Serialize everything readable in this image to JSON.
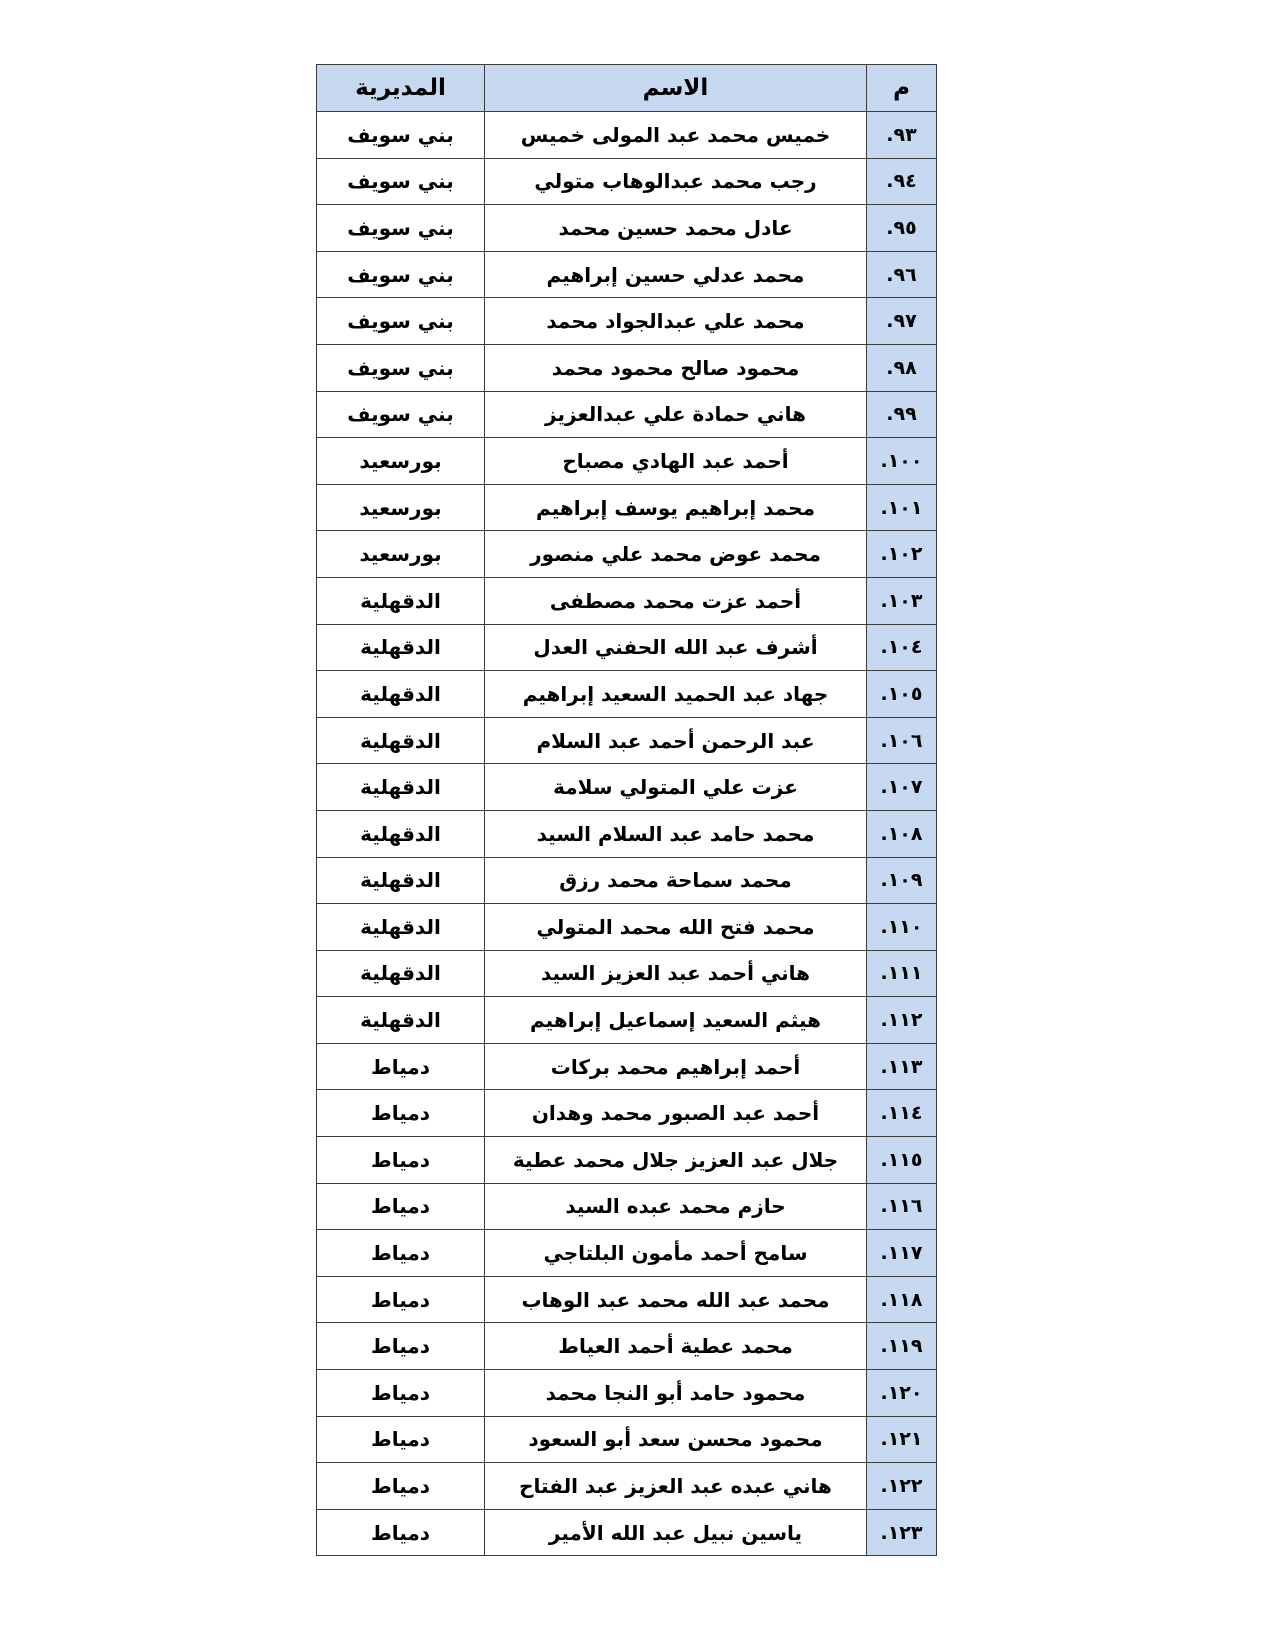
{
  "page": {
    "background": "#ffffff"
  },
  "table": {
    "colors": {
      "header_bg": "#c6d9f1",
      "num_col_bg": "#c6d9f1",
      "border": "#3b3b3b",
      "text": "#000000"
    },
    "header": {
      "num": "م",
      "name": "الاسم",
      "directorate": "المديرية"
    },
    "rows": [
      {
        "num": "٩٣.",
        "name": "خميس محمد عبد المولى خميس",
        "directorate": "بني سويف"
      },
      {
        "num": "٩٤.",
        "name": "رجب محمد عبدالوهاب متولي",
        "directorate": "بني سويف"
      },
      {
        "num": "٩٥.",
        "name": "عادل محمد حسين محمد",
        "directorate": "بني سويف"
      },
      {
        "num": "٩٦.",
        "name": "محمد عدلي حسين إبراهيم",
        "directorate": "بني سويف"
      },
      {
        "num": "٩٧.",
        "name": "محمد علي عبدالجواد محمد",
        "directorate": "بني سويف"
      },
      {
        "num": "٩٨.",
        "name": "محمود صالح محمود محمد",
        "directorate": "بني سويف"
      },
      {
        "num": "٩٩.",
        "name": "هاني حمادة علي عبدالعزيز",
        "directorate": "بني سويف"
      },
      {
        "num": "١٠٠.",
        "name": "أحمد عبد الهادي مصباح",
        "directorate": "بورسعيد"
      },
      {
        "num": "١٠١.",
        "name": "محمد إبراهيم يوسف إبراهيم",
        "directorate": "بورسعيد"
      },
      {
        "num": "١٠٢.",
        "name": "محمد عوض محمد علي منصور",
        "directorate": "بورسعيد"
      },
      {
        "num": "١٠٣.",
        "name": "أحمد عزت محمد مصطفى",
        "directorate": "الدقهلية"
      },
      {
        "num": "١٠٤.",
        "name": "أشرف عبد الله الحفني العدل",
        "directorate": "الدقهلية"
      },
      {
        "num": "١٠٥.",
        "name": "جهاد عبد الحميد السعيد إبراهيم",
        "directorate": "الدقهلية"
      },
      {
        "num": "١٠٦.",
        "name": "عبد الرحمن أحمد عبد السلام",
        "directorate": "الدقهلية"
      },
      {
        "num": "١٠٧.",
        "name": "عزت علي المتولي سلامة",
        "directorate": "الدقهلية"
      },
      {
        "num": "١٠٨.",
        "name": "محمد حامد عبد السلام السيد",
        "directorate": "الدقهلية"
      },
      {
        "num": "١٠٩.",
        "name": "محمد سماحة محمد رزق",
        "directorate": "الدقهلية"
      },
      {
        "num": "١١٠.",
        "name": "محمد فتح الله محمد المتولي",
        "directorate": "الدقهلية"
      },
      {
        "num": "١١١.",
        "name": "هاني أحمد عبد العزيز السيد",
        "directorate": "الدقهلية"
      },
      {
        "num": "١١٢.",
        "name": "هيثم السعيد إسماعيل إبراهيم",
        "directorate": "الدقهلية"
      },
      {
        "num": "١١٣.",
        "name": "أحمد إبراهيم محمد بركات",
        "directorate": "دمياط"
      },
      {
        "num": "١١٤.",
        "name": "أحمد عبد الصبور محمد وهدان",
        "directorate": "دمياط"
      },
      {
        "num": "١١٥.",
        "name": "جلال عبد العزيز جلال محمد عطية",
        "directorate": "دمياط"
      },
      {
        "num": "١١٦.",
        "name": "حازم محمد عبده السيد",
        "directorate": "دمياط"
      },
      {
        "num": "١١٧.",
        "name": "سامح أحمد مأمون البلتاجي",
        "directorate": "دمياط"
      },
      {
        "num": "١١٨.",
        "name": "محمد عبد الله محمد عبد الوهاب",
        "directorate": "دمياط"
      },
      {
        "num": "١١٩.",
        "name": "محمد عطية أحمد العياط",
        "directorate": "دمياط"
      },
      {
        "num": "١٢٠.",
        "name": "محمود حامد أبو النجا محمد",
        "directorate": "دمياط"
      },
      {
        "num": "١٢١.",
        "name": "محمود محسن سعد أبو السعود",
        "directorate": "دمياط"
      },
      {
        "num": "١٢٢.",
        "name": "هاني عبده عبد العزيز عبد الفتاح",
        "directorate": "دمياط"
      },
      {
        "num": "١٢٣.",
        "name": "ياسين نبيل عبد الله الأمير",
        "directorate": "دمياط"
      }
    ]
  }
}
